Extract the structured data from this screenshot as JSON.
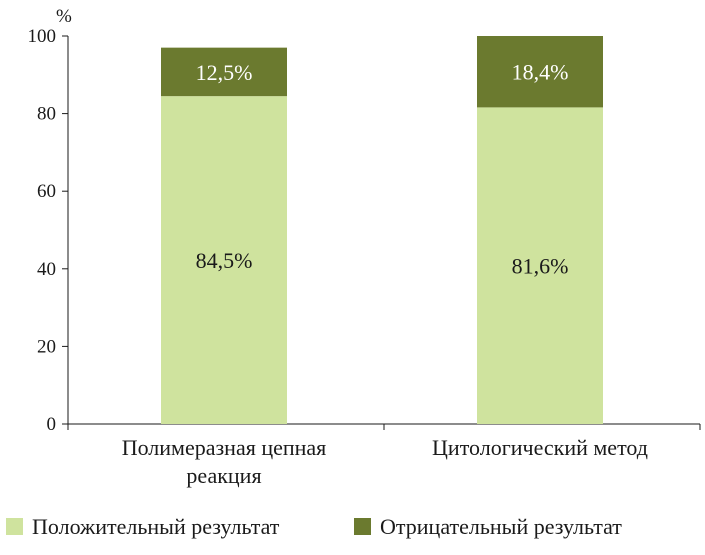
{
  "chart_data": {
    "type": "bar",
    "stacked": true,
    "title": "",
    "ylabel": "%",
    "xlabel": "",
    "ylim": [
      0,
      100
    ],
    "yticks": [
      0,
      20,
      40,
      60,
      80,
      100
    ],
    "ytick_labels": [
      "0",
      "20",
      "40",
      "60",
      "80",
      "100"
    ],
    "grid": false,
    "categories": [
      [
        "Полимеразная цепная",
        "реакция"
      ],
      [
        "Цитологический метод"
      ]
    ],
    "series": [
      {
        "name": "Положительный результат",
        "color": "#cfe39e",
        "label_color": "#1a1a1a",
        "values": [
          84.5,
          81.6
        ],
        "labels": [
          "84,5%",
          "81,6%"
        ]
      },
      {
        "name": "Отрицательный результат",
        "color": "#6b7a2f",
        "label_color": "#ffffff",
        "values": [
          12.5,
          18.4
        ],
        "labels": [
          "12,5%",
          "18,4%"
        ]
      }
    ],
    "legend_position": "bottom"
  }
}
